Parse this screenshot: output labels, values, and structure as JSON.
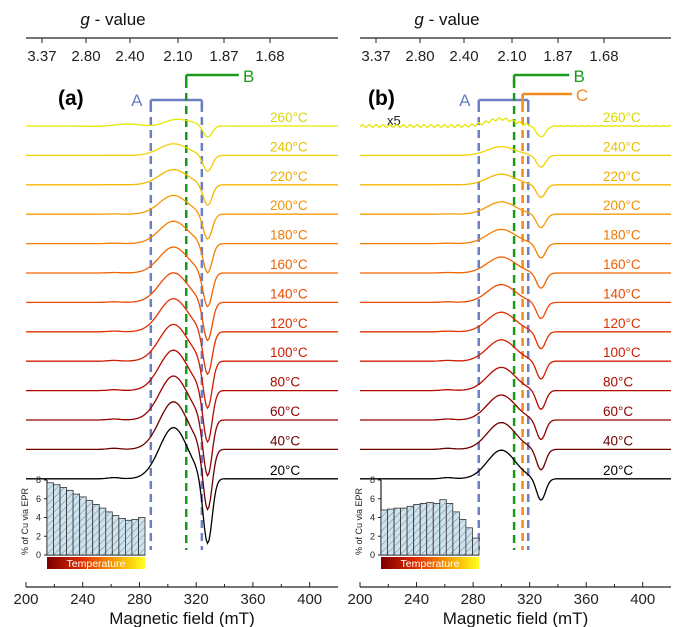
{
  "chart_data": [
    {
      "type": "line",
      "panel_label": "(a)",
      "xlabel": "Magnetic field (mT)",
      "xlim": [
        200,
        420
      ],
      "x_ticks": [
        "200",
        "240",
        "280",
        "320",
        "360",
        "400"
      ],
      "top_axis_label": "g - value",
      "g_ticks": [
        "3.37",
        "2.80",
        "2.40",
        "2.10",
        "1.87",
        "1.68"
      ],
      "temperatures": [
        "260°C",
        "240°C",
        "220°C",
        "200°C",
        "180°C",
        "160°C",
        "140°C",
        "120°C",
        "100°C",
        "80°C",
        "60°C",
        "40°C",
        "20°C"
      ],
      "dashed_lines_mT": [
        {
          "field": 288,
          "color": "#6b7fc4"
        },
        {
          "field": 313,
          "color": "#1a9a1a"
        },
        {
          "field": 324,
          "color": "#6b7fc4"
        }
      ],
      "markers": [
        {
          "label": "A",
          "from": 288,
          "to": 324,
          "color": "#6b7fc4"
        },
        {
          "label": "B",
          "from": 313,
          "to": 350,
          "color": "#1a9a1a"
        }
      ],
      "spectrum_features": {
        "main_peak_mT": 304,
        "main_trough_mT": 328
      },
      "annotation": "",
      "inset": {
        "type": "bar",
        "ylabel": "% of Cu via EPR",
        "y_ticks": [
          "0",
          "2",
          "4",
          "6",
          "8"
        ],
        "ylim": [
          0,
          8
        ],
        "gradient_label": "Temperature",
        "values": [
          7.7,
          7.5,
          7.2,
          6.9,
          6.5,
          6.2,
          5.8,
          5.4,
          5.0,
          4.6,
          4.2,
          3.9,
          3.7,
          3.8,
          4.0
        ]
      }
    },
    {
      "type": "line",
      "panel_label": "(b)",
      "xlabel": "Magnetic field (mT)",
      "xlim": [
        200,
        420
      ],
      "x_ticks": [
        "200",
        "240",
        "280",
        "320",
        "360",
        "400"
      ],
      "top_axis_label": "g - value",
      "g_ticks": [
        "3.37",
        "2.80",
        "2.40",
        "2.10",
        "1.87",
        "1.68"
      ],
      "temperatures": [
        "260°C",
        "240°C",
        "220°C",
        "200°C",
        "180°C",
        "160°C",
        "140°C",
        "120°C",
        "100°C",
        "80°C",
        "60°C",
        "40°C",
        "20°C"
      ],
      "dashed_lines_mT": [
        {
          "field": 284,
          "color": "#6b7fc4"
        },
        {
          "field": 309,
          "color": "#1a9a1a"
        },
        {
          "field": 315,
          "color": "#f28a1e"
        },
        {
          "field": 319,
          "color": "#6b7fc4"
        }
      ],
      "markers": [
        {
          "label": "A",
          "from": 284,
          "to": 319,
          "color": "#6b7fc4"
        },
        {
          "label": "B",
          "from": 309,
          "to": 348,
          "color": "#1a9a1a"
        },
        {
          "label": "C",
          "from": 315,
          "to": 350,
          "color": "#f28a1e"
        }
      ],
      "spectrum_features": {
        "main_peak_mT": 300,
        "main_trough_mT": 328
      },
      "annotation": "x5",
      "inset": {
        "type": "bar",
        "ylabel": "% of Cu via EPR",
        "y_ticks": [
          "0",
          "2",
          "4",
          "6",
          "8"
        ],
        "ylim": [
          0,
          8
        ],
        "gradient_label": "Temperature",
        "values": [
          4.8,
          4.9,
          5.0,
          5.0,
          5.2,
          5.4,
          5.5,
          5.6,
          5.5,
          5.9,
          5.5,
          4.6,
          3.8,
          2.9,
          1.8
        ]
      }
    }
  ],
  "trace_colors": [
    "#e6e600",
    "#f2d200",
    "#f5b800",
    "#f59c00",
    "#f57e00",
    "#f26400",
    "#ef4b00",
    "#e33200",
    "#d21c00",
    "#b40a00",
    "#960000",
    "#6e0000",
    "#000000"
  ],
  "temp_label_colors": [
    "#d8d800",
    "#e6c200",
    "#eeac00",
    "#f09400",
    "#f07800",
    "#ec6000",
    "#e84a00",
    "#dc3000",
    "#cc1c00",
    "#a80800",
    "#8c0000",
    "#640000",
    "#000000"
  ]
}
